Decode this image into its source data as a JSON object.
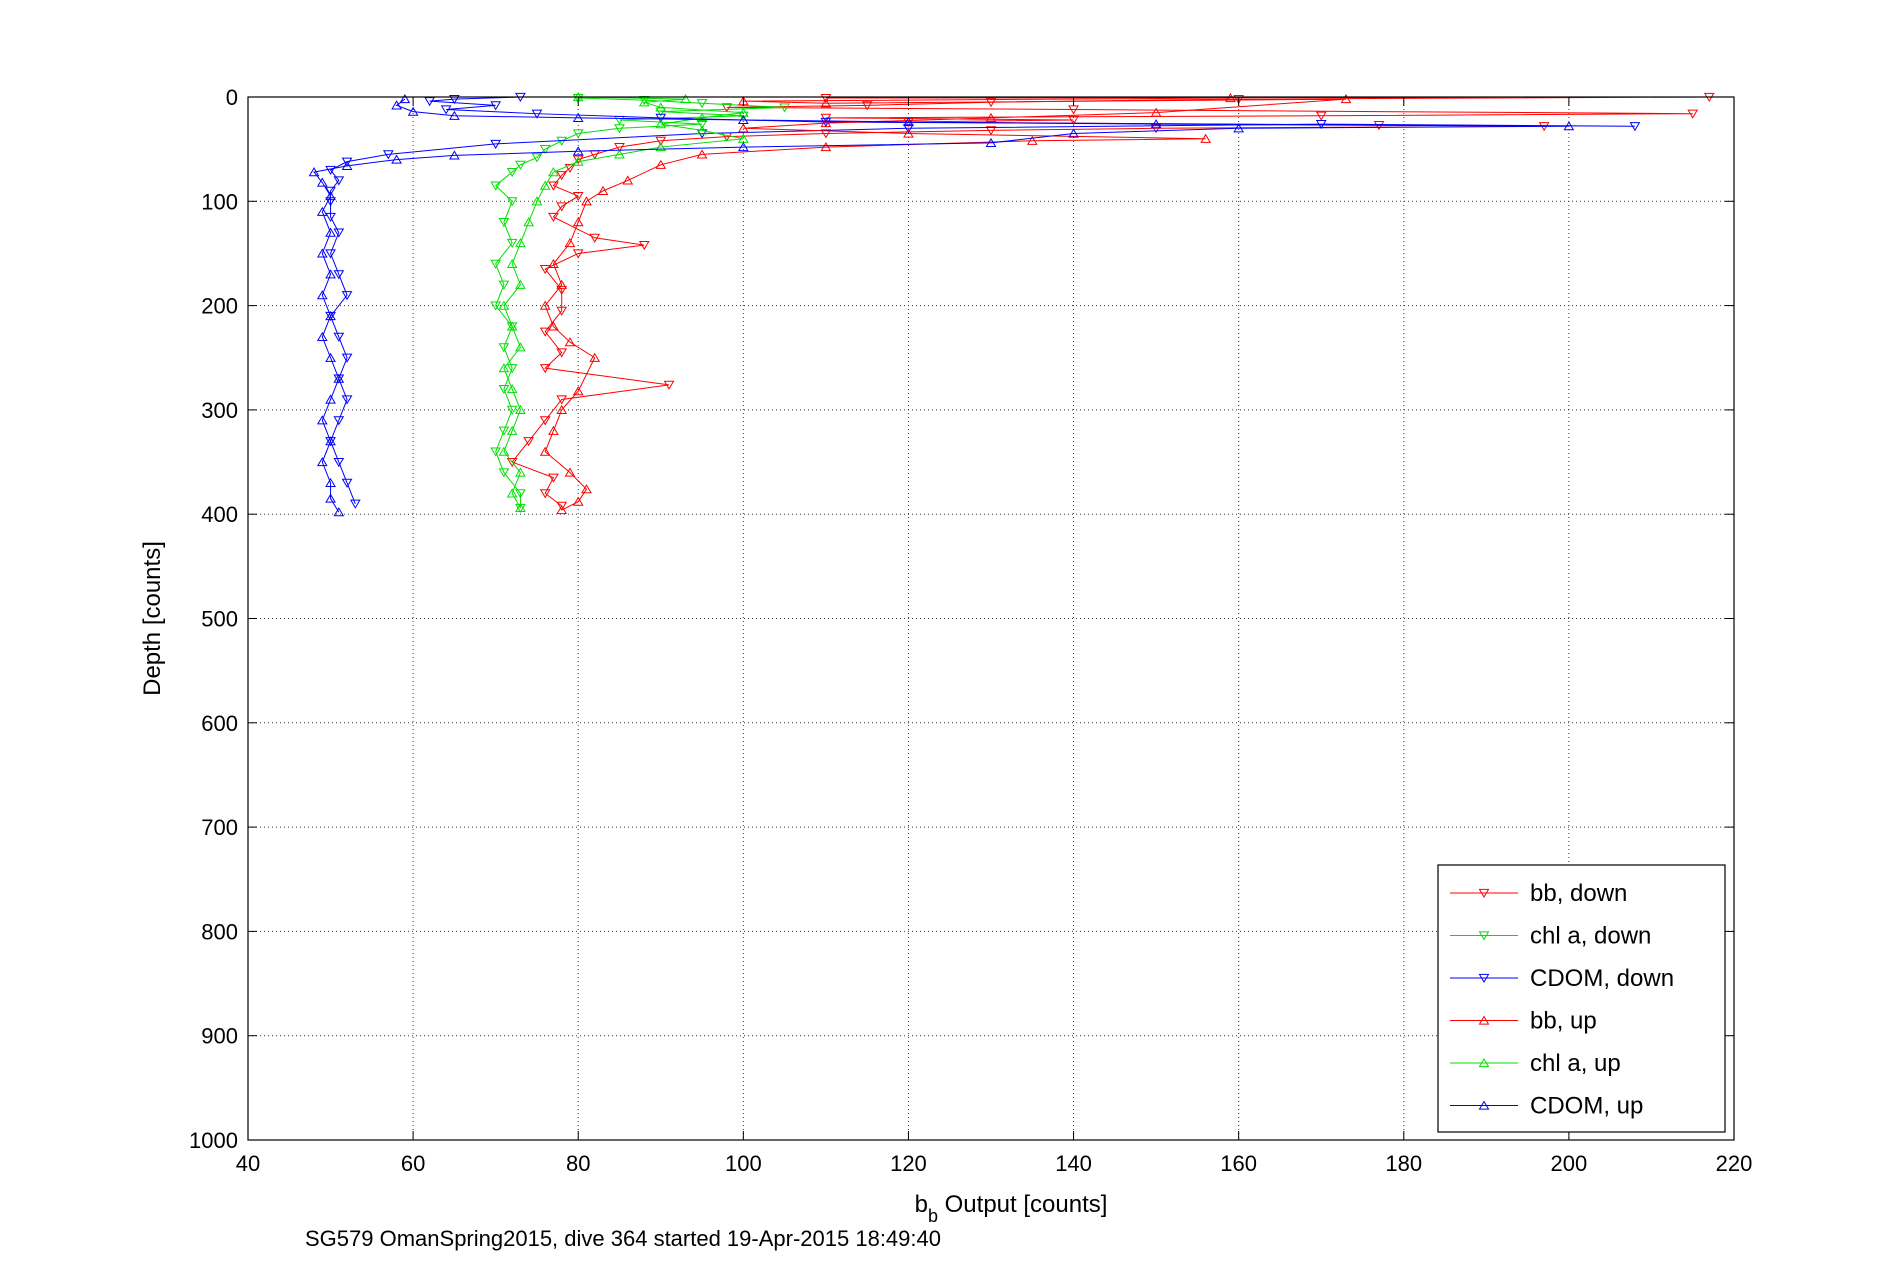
{
  "chart_data": {
    "type": "scatter",
    "xlabel_main": "b",
    "xlabel_sub": "b",
    "xlabel_rest": " Output [counts]",
    "ylabel": "Depth [counts]",
    "caption": "SG579 OmanSpring2015, dive 364 started 19-Apr-2015 18:49:40",
    "xlim": [
      40,
      220
    ],
    "ylim": [
      0,
      1000
    ],
    "y_reversed": true,
    "grid": true,
    "legend_position": "bottom-right",
    "x_ticks": [
      "40",
      "60",
      "80",
      "100",
      "120",
      "140",
      "160",
      "180",
      "200",
      "220"
    ],
    "y_ticks": [
      "0",
      "100",
      "200",
      "300",
      "400",
      "500",
      "600",
      "700",
      "800",
      "900",
      "1000"
    ],
    "series": [
      {
        "name": "bb, down",
        "color": "#ff0000",
        "marker": "triangle-down",
        "points": [
          [
            110,
            1
          ],
          [
            217,
            0
          ],
          [
            160,
            2
          ],
          [
            130,
            5
          ],
          [
            115,
            8
          ],
          [
            98,
            10
          ],
          [
            140,
            12
          ],
          [
            215,
            16
          ],
          [
            170,
            18
          ],
          [
            110,
            20
          ],
          [
            140,
            22
          ],
          [
            120,
            24
          ],
          [
            177,
            27
          ],
          [
            197,
            28
          ],
          [
            150,
            30
          ],
          [
            130,
            32
          ],
          [
            110,
            35
          ],
          [
            98,
            38
          ],
          [
            90,
            42
          ],
          [
            85,
            48
          ],
          [
            82,
            55
          ],
          [
            80,
            60
          ],
          [
            79,
            68
          ],
          [
            78,
            75
          ],
          [
            77,
            85
          ],
          [
            80,
            95
          ],
          [
            78,
            105
          ],
          [
            77,
            115
          ],
          [
            82,
            135
          ],
          [
            88,
            142
          ],
          [
            80,
            150
          ],
          [
            76,
            165
          ],
          [
            78,
            185
          ],
          [
            78,
            205
          ],
          [
            76,
            225
          ],
          [
            78,
            245
          ],
          [
            76,
            260
          ],
          [
            91,
            276
          ],
          [
            78,
            290
          ],
          [
            76,
            310
          ],
          [
            74,
            330
          ],
          [
            72,
            350
          ],
          [
            77,
            365
          ],
          [
            76,
            380
          ],
          [
            78,
            392
          ]
        ]
      },
      {
        "name": "chl a, down",
        "color": "#00e000",
        "marker": "triangle-down",
        "points": [
          [
            80,
            1
          ],
          [
            88,
            3
          ],
          [
            95,
            6
          ],
          [
            105,
            10
          ],
          [
            90,
            14
          ],
          [
            100,
            18
          ],
          [
            85,
            22
          ],
          [
            95,
            26
          ],
          [
            85,
            30
          ],
          [
            80,
            35
          ],
          [
            78,
            42
          ],
          [
            76,
            50
          ],
          [
            75,
            58
          ],
          [
            73,
            65
          ],
          [
            72,
            72
          ],
          [
            70,
            85
          ],
          [
            72,
            100
          ],
          [
            71,
            120
          ],
          [
            72,
            140
          ],
          [
            70,
            160
          ],
          [
            71,
            180
          ],
          [
            70,
            200
          ],
          [
            72,
            220
          ],
          [
            71,
            240
          ],
          [
            72,
            260
          ],
          [
            71,
            280
          ],
          [
            72,
            300
          ],
          [
            71,
            320
          ],
          [
            70,
            340
          ],
          [
            71,
            360
          ],
          [
            73,
            380
          ],
          [
            73,
            394
          ]
        ]
      },
      {
        "name": "CDOM, down",
        "color": "#0000ff",
        "marker": "triangle-down",
        "points": [
          [
            73,
            0
          ],
          [
            65,
            2
          ],
          [
            62,
            4
          ],
          [
            70,
            8
          ],
          [
            64,
            12
          ],
          [
            75,
            16
          ],
          [
            90,
            20
          ],
          [
            110,
            24
          ],
          [
            208,
            28
          ],
          [
            170,
            26
          ],
          [
            120,
            30
          ],
          [
            95,
            35
          ],
          [
            70,
            45
          ],
          [
            57,
            55
          ],
          [
            52,
            62
          ],
          [
            50,
            70
          ],
          [
            51,
            80
          ],
          [
            50,
            90
          ],
          [
            50,
            100
          ],
          [
            50,
            115
          ],
          [
            51,
            130
          ],
          [
            50,
            150
          ],
          [
            51,
            170
          ],
          [
            52,
            190
          ],
          [
            50,
            210
          ],
          [
            51,
            230
          ],
          [
            52,
            250
          ],
          [
            51,
            270
          ],
          [
            52,
            290
          ],
          [
            51,
            310
          ],
          [
            50,
            330
          ],
          [
            51,
            350
          ],
          [
            52,
            370
          ],
          [
            53,
            390
          ]
        ]
      },
      {
        "name": "bb, up",
        "color": "#ff0000",
        "marker": "triangle-up",
        "points": [
          [
            78,
            396
          ],
          [
            80,
            388
          ],
          [
            81,
            376
          ],
          [
            79,
            360
          ],
          [
            76,
            340
          ],
          [
            77,
            320
          ],
          [
            78,
            300
          ],
          [
            80,
            282
          ],
          [
            82,
            250
          ],
          [
            79,
            235
          ],
          [
            77,
            220
          ],
          [
            76,
            200
          ],
          [
            78,
            180
          ],
          [
            77,
            160
          ],
          [
            79,
            140
          ],
          [
            80,
            120
          ],
          [
            81,
            100
          ],
          [
            83,
            90
          ],
          [
            86,
            80
          ],
          [
            90,
            65
          ],
          [
            95,
            55
          ],
          [
            110,
            48
          ],
          [
            135,
            42
          ],
          [
            156,
            40
          ],
          [
            120,
            35
          ],
          [
            100,
            30
          ],
          [
            110,
            25
          ],
          [
            130,
            20
          ],
          [
            150,
            15
          ],
          [
            173,
            2
          ],
          [
            110,
            6
          ],
          [
            100,
            4
          ],
          [
            159,
            1
          ]
        ]
      },
      {
        "name": "chl a, up",
        "color": "#00e000",
        "marker": "triangle-up",
        "points": [
          [
            73,
            394
          ],
          [
            72,
            380
          ],
          [
            73,
            360
          ],
          [
            71,
            340
          ],
          [
            72,
            320
          ],
          [
            73,
            300
          ],
          [
            72,
            280
          ],
          [
            71,
            260
          ],
          [
            73,
            240
          ],
          [
            72,
            220
          ],
          [
            71,
            200
          ],
          [
            73,
            180
          ],
          [
            72,
            160
          ],
          [
            73,
            140
          ],
          [
            74,
            120
          ],
          [
            75,
            100
          ],
          [
            76,
            85
          ],
          [
            77,
            72
          ],
          [
            80,
            62
          ],
          [
            85,
            55
          ],
          [
            90,
            48
          ],
          [
            100,
            40
          ],
          [
            95,
            32
          ],
          [
            90,
            26
          ],
          [
            95,
            20
          ],
          [
            100,
            15
          ],
          [
            90,
            10
          ],
          [
            88,
            5
          ],
          [
            93,
            2
          ],
          [
            80,
            0
          ]
        ]
      },
      {
        "name": "CDOM, up",
        "color": "#0000ff",
        "marker": "triangle-up",
        "points": [
          [
            51,
            398
          ],
          [
            50,
            385
          ],
          [
            50,
            370
          ],
          [
            49,
            350
          ],
          [
            50,
            330
          ],
          [
            49,
            310
          ],
          [
            50,
            290
          ],
          [
            51,
            270
          ],
          [
            50,
            250
          ],
          [
            49,
            230
          ],
          [
            50,
            210
          ],
          [
            49,
            190
          ],
          [
            50,
            170
          ],
          [
            49,
            150
          ],
          [
            50,
            130
          ],
          [
            49,
            110
          ],
          [
            50,
            95
          ],
          [
            49,
            82
          ],
          [
            48,
            72
          ],
          [
            52,
            66
          ],
          [
            58,
            60
          ],
          [
            65,
            56
          ],
          [
            80,
            52
          ],
          [
            100,
            48
          ],
          [
            130,
            44
          ],
          [
            140,
            35
          ],
          [
            160,
            30
          ],
          [
            200,
            28
          ],
          [
            150,
            26
          ],
          [
            120,
            24
          ],
          [
            100,
            22
          ],
          [
            80,
            20
          ],
          [
            65,
            18
          ],
          [
            60,
            14
          ],
          [
            58,
            8
          ],
          [
            59,
            2
          ]
        ]
      }
    ]
  }
}
